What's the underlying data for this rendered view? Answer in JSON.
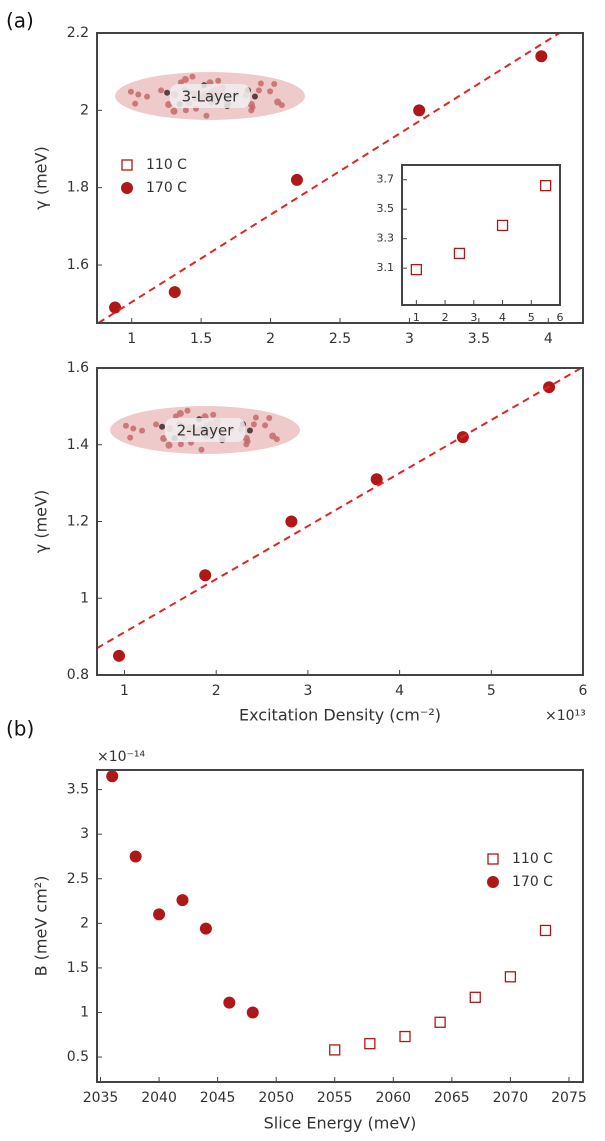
{
  "panel_labels": [
    "(a)",
    "(b)"
  ],
  "chart_data": [
    {
      "type": "scatter",
      "ylabel": "γ (meV)",
      "annotation": "3-Layer",
      "xlim": [
        0.75,
        4.25
      ],
      "xticks": [
        1,
        1.5,
        2,
        2.5,
        3,
        3.5,
        4
      ],
      "ylim": [
        1.45,
        2.2
      ],
      "yticks": [
        1.6,
        1.8,
        2,
        2.2
      ],
      "legend": "upper left",
      "series": [
        {
          "name": "110 C",
          "color": "#b01818",
          "marker": "square-open",
          "x": [],
          "values": []
        },
        {
          "name": "170 C",
          "color": "#b01818",
          "marker": "circle",
          "x": [
            0.88,
            1.31,
            2.19,
            3.07,
            3.95
          ],
          "values": [
            1.49,
            1.53,
            1.82,
            2.0,
            2.14
          ]
        },
        {
          "color": "#e02525",
          "marker": "dashed-line",
          "x": [
            0.76,
            4.08
          ],
          "values": [
            1.45,
            2.2
          ]
        }
      ]
    },
    {
      "type": "scatter",
      "xlim": [
        0.5,
        6
      ],
      "xticks": [
        1,
        2,
        3,
        4,
        5,
        6
      ],
      "ylim": [
        2.85,
        3.8
      ],
      "yticks": [
        3.1,
        3.3,
        3.5,
        3.7
      ],
      "series": [
        {
          "color": "#b01818",
          "marker": "square-open",
          "x": [
            1.0,
            2.5,
            4.0,
            5.5
          ],
          "values": [
            3.09,
            3.2,
            3.39,
            3.66
          ]
        }
      ]
    },
    {
      "type": "scatter",
      "ylabel": "γ (meV)",
      "xlabel": "Excitation Density (cm⁻²)",
      "x_multiplier": "×10¹³",
      "annotation": "2-Layer",
      "xlim": [
        0.7,
        6
      ],
      "xticks": [
        1,
        2,
        3,
        4,
        5,
        6
      ],
      "ylim": [
        0.8,
        1.6
      ],
      "yticks": [
        0.8,
        1,
        1.2,
        1.4,
        1.6
      ],
      "series": [
        {
          "color": "#b01818",
          "marker": "circle",
          "x": [
            0.94,
            1.88,
            2.82,
            3.75,
            4.69,
            5.63
          ],
          "values": [
            0.85,
            1.06,
            1.2,
            1.31,
            1.42,
            1.55
          ]
        },
        {
          "color": "#e02525",
          "marker": "dashed-line",
          "x": [
            0.7,
            5.98
          ],
          "values": [
            0.87,
            1.6
          ]
        }
      ]
    },
    {
      "type": "scatter",
      "ylabel": "B (meV cm²)",
      "xlabel": "Slice Energy (meV)",
      "y_multiplier": "×10⁻¹⁴",
      "xlim": [
        2034.7,
        2076.2
      ],
      "xticks": [
        2035,
        2040,
        2045,
        2050,
        2055,
        2060,
        2065,
        2070,
        2075
      ],
      "ylim": [
        0.22,
        3.72
      ],
      "yticks": [
        0.5,
        1,
        1.5,
        2,
        2.5,
        3,
        3.5
      ],
      "legend": "upper right",
      "series": [
        {
          "name": "110 C",
          "color": "#b01818",
          "marker": "square-open",
          "x": [
            2055,
            2058,
            2061,
            2064,
            2067,
            2070,
            2073
          ],
          "values": [
            0.58,
            0.65,
            0.73,
            0.89,
            1.17,
            1.4,
            1.92
          ]
        },
        {
          "name": "170 C",
          "color": "#b01818",
          "marker": "circle",
          "x": [
            2036,
            2038,
            2040,
            2042,
            2044,
            2046,
            2048
          ],
          "values": [
            3.65,
            2.75,
            2.1,
            2.26,
            1.94,
            1.11,
            1.0
          ]
        }
      ]
    }
  ]
}
